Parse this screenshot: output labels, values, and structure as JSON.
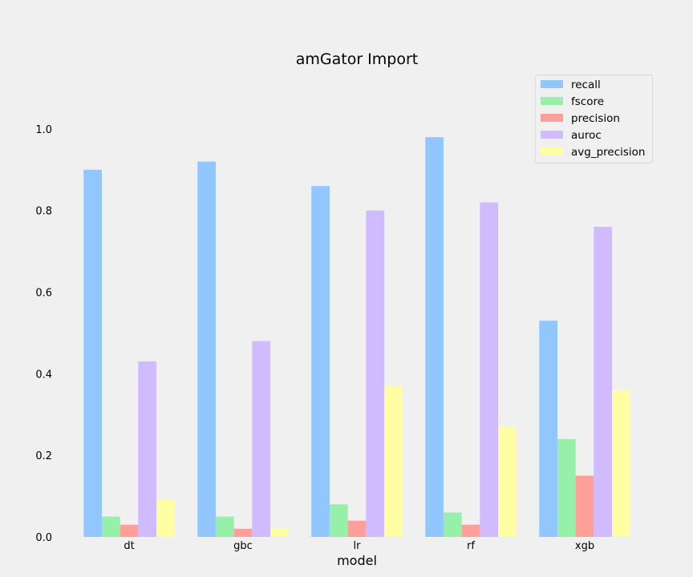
{
  "chart_data": {
    "type": "bar",
    "title": "amGator Import",
    "xlabel": "model",
    "ylabel": "",
    "categories": [
      "dt",
      "gbc",
      "lr",
      "rf",
      "xgb"
    ],
    "series": [
      {
        "name": "recall",
        "color": "#92c6ff",
        "values": [
          0.9,
          0.92,
          0.86,
          0.98,
          0.53
        ]
      },
      {
        "name": "fscore",
        "color": "#97f0aa",
        "values": [
          0.05,
          0.05,
          0.08,
          0.06,
          0.24
        ]
      },
      {
        "name": "precision",
        "color": "#ff9f9a",
        "values": [
          0.03,
          0.02,
          0.04,
          0.03,
          0.15
        ]
      },
      {
        "name": "auroc",
        "color": "#d0bbff",
        "values": [
          0.43,
          0.48,
          0.8,
          0.82,
          0.76
        ]
      },
      {
        "name": "avg_precision",
        "color": "#fffea3",
        "values": [
          0.09,
          0.02,
          0.37,
          0.27,
          0.36
        ]
      }
    ],
    "ylim": [
      0,
      1.1
    ],
    "yticks": [
      "0.0",
      "0.2",
      "0.4",
      "0.6",
      "0.8",
      "1.0"
    ],
    "grid": false,
    "legend_position": "top-right"
  }
}
